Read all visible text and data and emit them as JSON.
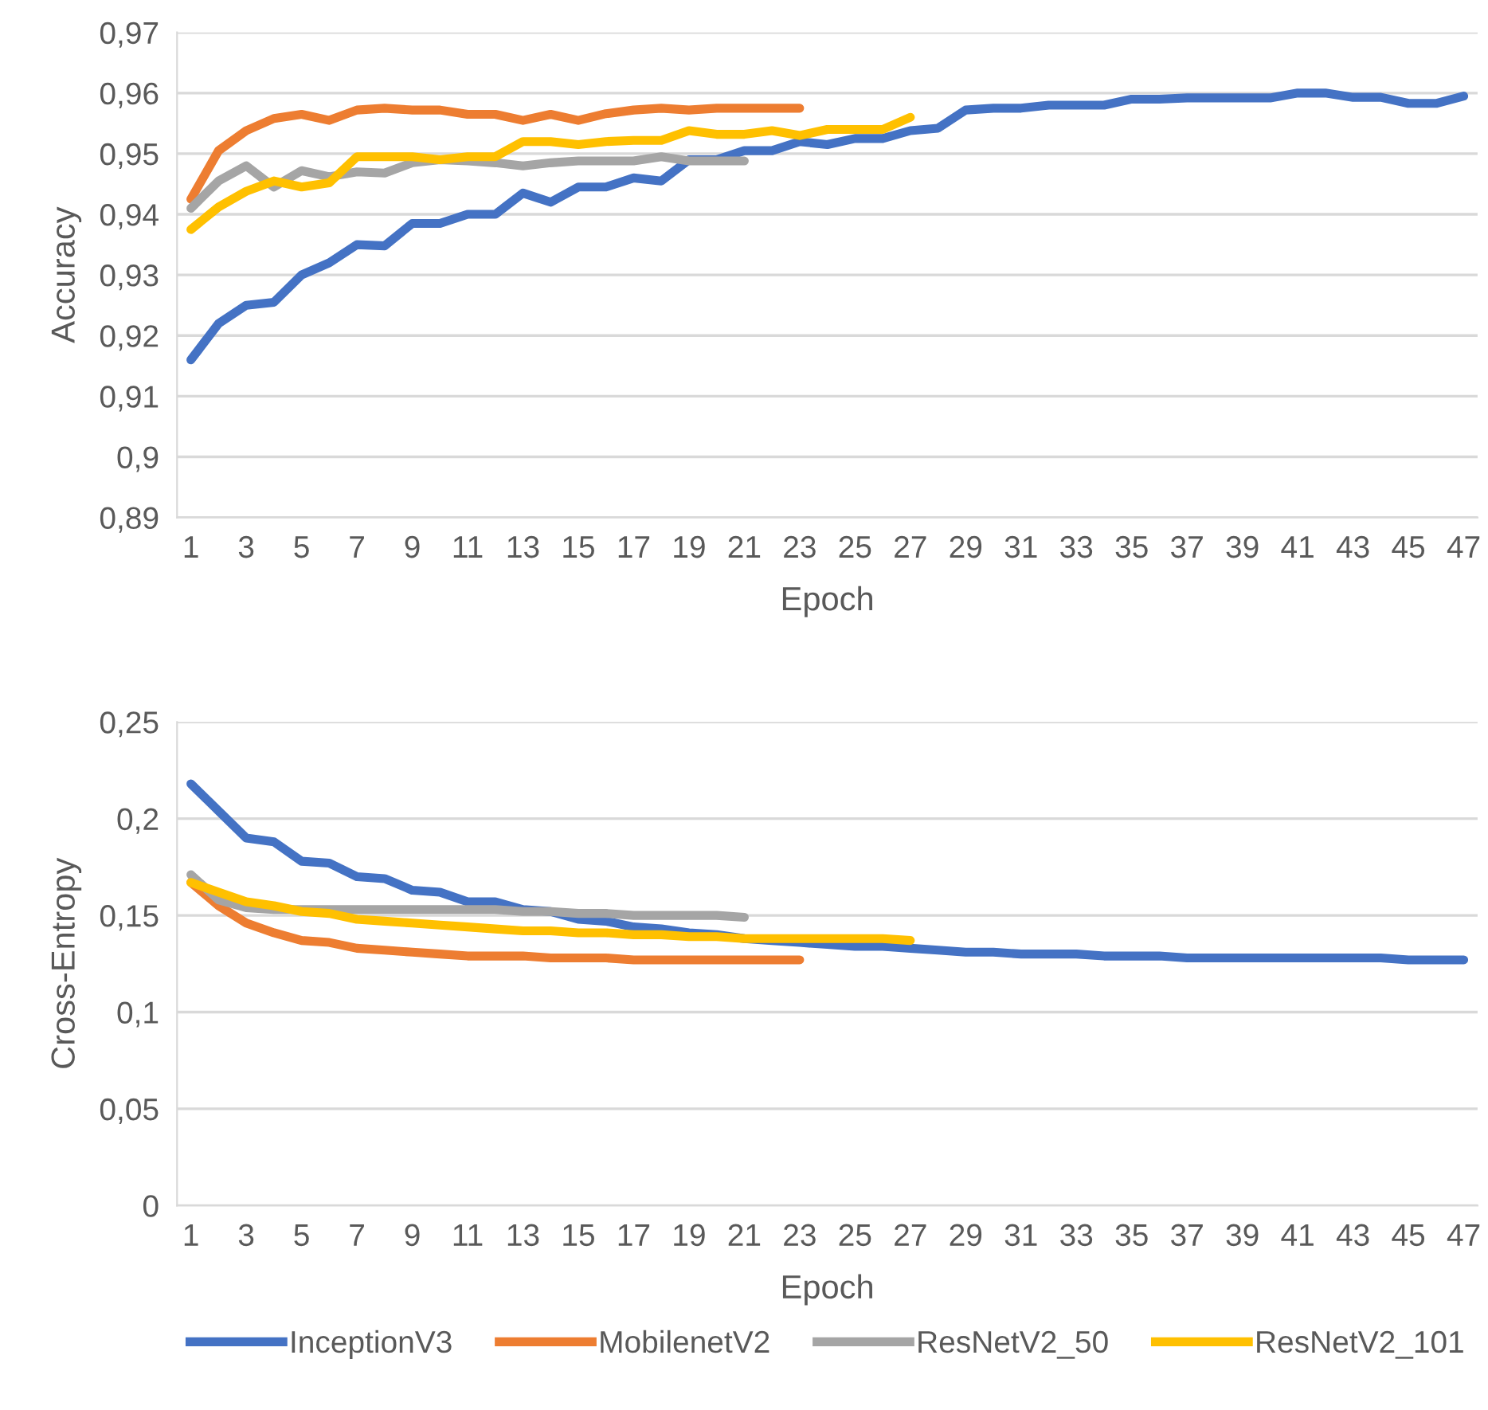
{
  "chart_data": [
    {
      "type": "line",
      "ylabel": "Accuracy",
      "xlabel": "Epoch",
      "categories": [
        "1",
        null,
        "3",
        null,
        "5",
        null,
        "7",
        null,
        "9",
        null,
        "11",
        null,
        "13",
        null,
        "15",
        null,
        "17",
        null,
        "19",
        null,
        "21",
        null,
        "23",
        null,
        "25",
        null,
        "27",
        null,
        "29",
        null,
        "31",
        null,
        "33",
        null,
        "35",
        null,
        "37",
        null,
        "39",
        null,
        "41",
        null,
        "43",
        null,
        "45",
        null,
        "47"
      ],
      "series": [
        {
          "color": "#4472c4",
          "values": [
            0.916,
            0.922,
            0.925,
            0.9255,
            0.93,
            0.932,
            0.935,
            0.9348,
            0.9385,
            0.9385,
            0.94,
            0.94,
            0.9435,
            0.942,
            0.9445,
            0.9445,
            0.946,
            0.9455,
            0.949,
            0.949,
            0.9505,
            0.9505,
            0.952,
            0.9515,
            0.9525,
            0.9525,
            0.9538,
            0.9542,
            0.9572,
            0.9575,
            0.9575,
            0.958,
            0.958,
            0.958,
            0.959,
            0.959,
            0.9592,
            0.9592,
            0.9592,
            0.9592,
            0.96,
            0.96,
            0.9593,
            0.9593,
            0.9583,
            0.9583,
            0.9595
          ]
        },
        {
          "color": "#ed7d31",
          "values": [
            0.9425,
            0.9505,
            0.9538,
            0.9558,
            0.9565,
            0.9555,
            0.9572,
            0.9575,
            0.9572,
            0.9572,
            0.9565,
            0.9565,
            0.9555,
            0.9565,
            0.9555,
            0.9566,
            0.9572,
            0.9575,
            0.9572,
            0.9575,
            0.9575,
            0.9575,
            0.9575,
            null,
            null,
            null,
            null,
            null,
            null,
            null,
            null,
            null,
            null,
            null,
            null,
            null,
            null,
            null,
            null,
            null,
            null,
            null,
            null,
            null,
            null,
            null,
            null
          ]
        },
        {
          "color": "#a5a5a5",
          "values": [
            0.941,
            0.9455,
            0.948,
            0.9445,
            0.9472,
            0.9462,
            0.947,
            0.9468,
            0.9485,
            0.949,
            0.9488,
            0.9485,
            0.948,
            0.9485,
            0.9488,
            0.9488,
            0.9488,
            0.9495,
            0.9488,
            0.9488,
            0.9488,
            null,
            null,
            null,
            null,
            null,
            null,
            null,
            null,
            null,
            null,
            null,
            null,
            null,
            null,
            null,
            null,
            null,
            null,
            null,
            null,
            null,
            null,
            null,
            null,
            null,
            null
          ]
        },
        {
          "color": "#ffc000",
          "values": [
            0.9375,
            0.9412,
            0.9438,
            0.9455,
            0.9445,
            0.9452,
            0.9495,
            0.9495,
            0.9495,
            0.949,
            0.9495,
            0.9495,
            0.952,
            0.952,
            0.9515,
            0.952,
            0.9522,
            0.9522,
            0.9538,
            0.9532,
            0.9532,
            0.9538,
            0.953,
            0.954,
            0.954,
            0.954,
            0.956,
            null,
            null,
            null,
            null,
            null,
            null,
            null,
            null,
            null,
            null,
            null,
            null,
            null,
            null,
            null,
            null,
            null,
            null,
            null,
            null
          ]
        }
      ],
      "ylim": [
        0.89,
        0.97
      ],
      "yticks": [
        {
          "value": 0.89,
          "label": "0,89"
        },
        {
          "value": 0.9,
          "label": "0,9"
        },
        {
          "value": 0.91,
          "label": "0,91"
        },
        {
          "value": 0.92,
          "label": "0,92"
        },
        {
          "value": 0.93,
          "label": "0,93"
        },
        {
          "value": 0.94,
          "label": "0,94"
        },
        {
          "value": 0.95,
          "label": "0,95"
        },
        {
          "value": 0.96,
          "label": "0,96"
        },
        {
          "value": 0.97,
          "label": "0,97"
        }
      ],
      "grid": "y",
      "legend": false,
      "marker": "none",
      "line_style": "solid"
    },
    {
      "type": "line",
      "ylabel": "Cross-Entropy",
      "xlabel": "Epoch",
      "categories": [
        "1",
        null,
        "3",
        null,
        "5",
        null,
        "7",
        null,
        "9",
        null,
        "11",
        null,
        "13",
        null,
        "15",
        null,
        "17",
        null,
        "19",
        null,
        "21",
        null,
        "23",
        null,
        "25",
        null,
        "27",
        null,
        "29",
        null,
        "31",
        null,
        "33",
        null,
        "35",
        null,
        "37",
        null,
        "39",
        null,
        "41",
        null,
        "43",
        null,
        "45",
        null,
        "47"
      ],
      "series": [
        {
          "name": "InceptionV3",
          "color": "#4472c4",
          "values": [
            0.218,
            0.204,
            0.19,
            0.188,
            0.178,
            0.177,
            0.17,
            0.169,
            0.163,
            0.162,
            0.157,
            0.157,
            0.153,
            0.152,
            0.148,
            0.147,
            0.144,
            0.143,
            0.141,
            0.14,
            0.138,
            0.137,
            0.136,
            0.135,
            0.134,
            0.134,
            0.133,
            0.132,
            0.131,
            0.131,
            0.13,
            0.13,
            0.13,
            0.129,
            0.129,
            0.129,
            0.128,
            0.128,
            0.128,
            0.128,
            0.128,
            0.128,
            0.128,
            0.128,
            0.127,
            0.127,
            0.127
          ]
        },
        {
          "name": "MobilenetV2",
          "color": "#ed7d31",
          "values": [
            0.167,
            0.155,
            0.146,
            0.141,
            0.137,
            0.136,
            0.133,
            0.132,
            0.131,
            0.13,
            0.129,
            0.129,
            0.129,
            0.128,
            0.128,
            0.128,
            0.127,
            0.127,
            0.127,
            0.127,
            0.127,
            0.127,
            0.127,
            null,
            null,
            null,
            null,
            null,
            null,
            null,
            null,
            null,
            null,
            null,
            null,
            null,
            null,
            null,
            null,
            null,
            null,
            null,
            null,
            null,
            null,
            null,
            null
          ]
        },
        {
          "name": "ResNetV2_50",
          "color": "#a5a5a5",
          "values": [
            0.171,
            0.158,
            0.154,
            0.153,
            0.153,
            0.153,
            0.153,
            0.153,
            0.153,
            0.153,
            0.153,
            0.153,
            0.152,
            0.152,
            0.151,
            0.151,
            0.15,
            0.15,
            0.15,
            0.15,
            0.149,
            null,
            null,
            null,
            null,
            null,
            null,
            null,
            null,
            null,
            null,
            null,
            null,
            null,
            null,
            null,
            null,
            null,
            null,
            null,
            null,
            null,
            null,
            null,
            null,
            null,
            null
          ]
        },
        {
          "name": "ResNetV2_101",
          "color": "#ffc000",
          "values": [
            0.167,
            0.162,
            0.157,
            0.155,
            0.152,
            0.151,
            0.148,
            0.147,
            0.146,
            0.145,
            0.144,
            0.143,
            0.142,
            0.142,
            0.141,
            0.141,
            0.14,
            0.14,
            0.139,
            0.139,
            0.138,
            0.138,
            0.138,
            0.138,
            0.138,
            0.138,
            0.137,
            null,
            null,
            null,
            null,
            null,
            null,
            null,
            null,
            null,
            null,
            null,
            null,
            null,
            null,
            null,
            null,
            null,
            null,
            null,
            null
          ]
        }
      ],
      "ylim": [
        0,
        0.25
      ],
      "yticks": [
        0,
        {
          "value": 0.05,
          "label": "0,05"
        },
        {
          "value": 0.1,
          "label": "0,1"
        },
        {
          "value": 0.15,
          "label": "0,15"
        },
        {
          "value": 0.2,
          "label": "0,2"
        },
        {
          "value": 0.25,
          "label": "0,25"
        }
      ],
      "grid": "y",
      "legend": "bottom",
      "marker": "none",
      "line_style": "solid"
    }
  ]
}
